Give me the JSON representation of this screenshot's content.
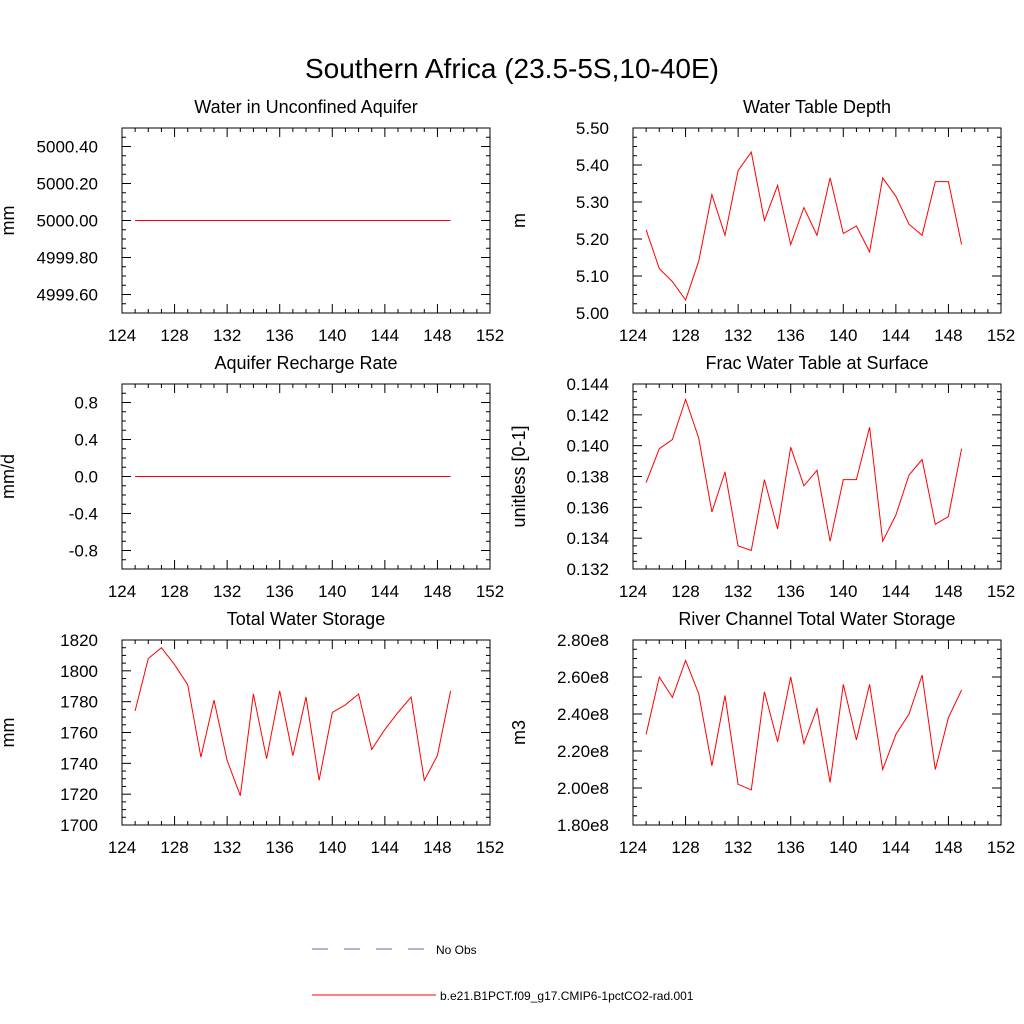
{
  "title": "Southern Africa (23.5-5S,10-40E)",
  "colors": {
    "model": "#ff0000",
    "obs": "#6a6ab0",
    "axis": "#000000"
  },
  "legend": {
    "obs_label": "No Obs",
    "model_label": "b.e21.B1PCT.f09_g17.CMIP6-1pctCO2-rad.001"
  },
  "chart_data": [
    {
      "type": "line",
      "title": "Water in Unconfined Aquifer",
      "ylabel": "mm",
      "xlim": [
        124,
        152
      ],
      "ylim": [
        4999.5,
        5000.5
      ],
      "x_ticks": [
        124,
        128,
        132,
        136,
        140,
        144,
        148,
        152
      ],
      "x_tick_labels": [
        "124",
        "128",
        "132",
        "136",
        "140",
        "144",
        "148",
        "152"
      ],
      "y_ticks": [
        4999.6,
        4999.8,
        5000.0,
        5000.2,
        5000.4
      ],
      "y_tick_labels": [
        "4999.60",
        "4999.80",
        "5000.00",
        "5000.20",
        "5000.40"
      ],
      "x": [
        125,
        126,
        127,
        128,
        129,
        130,
        131,
        132,
        133,
        134,
        135,
        136,
        137,
        138,
        139,
        140,
        141,
        142,
        143,
        144,
        145,
        146,
        147,
        148,
        149
      ],
      "series": [
        {
          "values": [
            5000,
            5000,
            5000,
            5000,
            5000,
            5000,
            5000,
            5000,
            5000,
            5000,
            5000,
            5000,
            5000,
            5000,
            5000,
            5000,
            5000,
            5000,
            5000,
            5000,
            5000,
            5000,
            5000,
            5000,
            5000
          ]
        }
      ]
    },
    {
      "type": "line",
      "title": "Water Table Depth",
      "ylabel": "m",
      "xlim": [
        124,
        152
      ],
      "ylim": [
        5.0,
        5.5
      ],
      "x_ticks": [
        124,
        128,
        132,
        136,
        140,
        144,
        148,
        152
      ],
      "x_tick_labels": [
        "124",
        "128",
        "132",
        "136",
        "140",
        "144",
        "148",
        "152"
      ],
      "y_ticks": [
        5.0,
        5.1,
        5.2,
        5.3,
        5.4,
        5.5
      ],
      "y_tick_labels": [
        "5.00",
        "5.10",
        "5.20",
        "5.30",
        "5.40",
        "5.50"
      ],
      "x": [
        125,
        126,
        127,
        128,
        129,
        130,
        131,
        132,
        133,
        134,
        135,
        136,
        137,
        138,
        139,
        140,
        141,
        142,
        143,
        144,
        145,
        146,
        147,
        148,
        149
      ],
      "series": [
        {
          "values": [
            5.225,
            5.12,
            5.085,
            5.035,
            5.14,
            5.32,
            5.21,
            5.385,
            5.435,
            5.25,
            5.345,
            5.185,
            5.285,
            5.21,
            5.365,
            5.215,
            5.235,
            5.165,
            5.365,
            5.315,
            5.24,
            5.21,
            5.355,
            5.355,
            5.185
          ]
        }
      ]
    },
    {
      "type": "line",
      "title": "Aquifer Recharge Rate",
      "ylabel": "mm/d",
      "xlim": [
        124,
        152
      ],
      "ylim": [
        -1.0,
        1.0
      ],
      "x_ticks": [
        124,
        128,
        132,
        136,
        140,
        144,
        148,
        152
      ],
      "x_tick_labels": [
        "124",
        "128",
        "132",
        "136",
        "140",
        "144",
        "148",
        "152"
      ],
      "y_ticks": [
        -0.8,
        -0.4,
        0.0,
        0.4,
        0.8
      ],
      "y_tick_labels": [
        "-0.8",
        "-0.4",
        "0.0",
        "0.4",
        "0.8"
      ],
      "x": [
        125,
        126,
        127,
        128,
        129,
        130,
        131,
        132,
        133,
        134,
        135,
        136,
        137,
        138,
        139,
        140,
        141,
        142,
        143,
        144,
        145,
        146,
        147,
        148,
        149
      ],
      "series": [
        {
          "values": [
            0,
            0,
            0,
            0,
            0,
            0,
            0,
            0,
            0,
            0,
            0,
            0,
            0,
            0,
            0,
            0,
            0,
            0,
            0,
            0,
            0,
            0,
            0,
            0,
            0
          ]
        }
      ]
    },
    {
      "type": "line",
      "title": "Frac Water Table at Surface",
      "ylabel": "unitless [0-1]",
      "xlim": [
        124,
        152
      ],
      "ylim": [
        0.132,
        0.144
      ],
      "x_ticks": [
        124,
        128,
        132,
        136,
        140,
        144,
        148,
        152
      ],
      "x_tick_labels": [
        "124",
        "128",
        "132",
        "136",
        "140",
        "144",
        "148",
        "152"
      ],
      "y_ticks": [
        0.132,
        0.134,
        0.136,
        0.138,
        0.14,
        0.142,
        0.144
      ],
      "y_tick_labels": [
        "0.132",
        "0.134",
        "0.136",
        "0.138",
        "0.140",
        "0.142",
        "0.144"
      ],
      "x": [
        125,
        126,
        127,
        128,
        129,
        130,
        131,
        132,
        133,
        134,
        135,
        136,
        137,
        138,
        139,
        140,
        141,
        142,
        143,
        144,
        145,
        146,
        147,
        148,
        149
      ],
      "series": [
        {
          "values": [
            0.1376,
            0.1398,
            0.1404,
            0.143,
            0.1405,
            0.1357,
            0.1383,
            0.1335,
            0.1332,
            0.1378,
            0.1346,
            0.1399,
            0.1374,
            0.1384,
            0.1338,
            0.1378,
            0.1378,
            0.1412,
            0.1338,
            0.1355,
            0.1381,
            0.1391,
            0.1349,
            0.1354,
            0.1398
          ]
        }
      ]
    },
    {
      "type": "line",
      "title": "Total Water Storage",
      "ylabel": "mm",
      "xlim": [
        124,
        152
      ],
      "ylim": [
        1700,
        1820
      ],
      "x_ticks": [
        124,
        128,
        132,
        136,
        140,
        144,
        148,
        152
      ],
      "x_tick_labels": [
        "124",
        "128",
        "132",
        "136",
        "140",
        "144",
        "148",
        "152"
      ],
      "y_ticks": [
        1700,
        1720,
        1740,
        1760,
        1780,
        1800,
        1820
      ],
      "y_tick_labels": [
        "1700",
        "1720",
        "1740",
        "1760",
        "1780",
        "1800",
        "1820"
      ],
      "x": [
        125,
        126,
        127,
        128,
        129,
        130,
        131,
        132,
        133,
        134,
        135,
        136,
        137,
        138,
        139,
        140,
        141,
        142,
        143,
        144,
        145,
        146,
        147,
        148,
        149
      ],
      "series": [
        {
          "values": [
            1774,
            1808,
            1815,
            1804,
            1791,
            1744,
            1781,
            1742,
            1719,
            1785,
            1743,
            1787,
            1745,
            1783,
            1729,
            1773,
            1778,
            1785,
            1749,
            1762,
            1773,
            1783,
            1729,
            1745,
            1787
          ]
        }
      ]
    },
    {
      "type": "line",
      "title": "River Channel Total Water Storage",
      "ylabel": "m3",
      "xlim": [
        124,
        152
      ],
      "ylim": [
        180000000,
        280000000
      ],
      "x_ticks": [
        124,
        128,
        132,
        136,
        140,
        144,
        148,
        152
      ],
      "x_tick_labels": [
        "124",
        "128",
        "132",
        "136",
        "140",
        "144",
        "148",
        "152"
      ],
      "y_ticks": [
        180000000,
        200000000,
        220000000,
        240000000,
        260000000,
        280000000
      ],
      "y_tick_labels": [
        "1.80e8",
        "2.00e8",
        "2.20e8",
        "2.40e8",
        "2.60e8",
        "2.80e8"
      ],
      "x": [
        125,
        126,
        127,
        128,
        129,
        130,
        131,
        132,
        133,
        134,
        135,
        136,
        137,
        138,
        139,
        140,
        141,
        142,
        143,
        144,
        145,
        146,
        147,
        148,
        149
      ],
      "series": [
        {
          "values": [
            229000000,
            260000000,
            249000000,
            269000000,
            251000000,
            212000000,
            250000000,
            202000000,
            199000000,
            252000000,
            225000000,
            260000000,
            224000000,
            243000000,
            203000000,
            256000000,
            226000000,
            256000000,
            210000000,
            229000000,
            240000000,
            261000000,
            210000000,
            238000000,
            253000000
          ]
        }
      ]
    }
  ]
}
